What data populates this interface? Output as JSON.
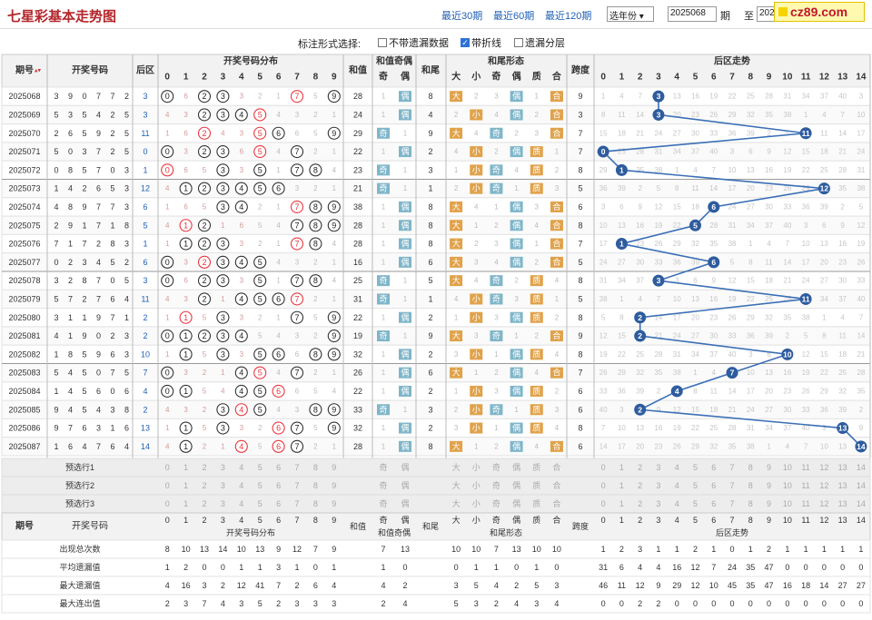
{
  "title": "七星彩基本走势图",
  "logo_text": "cz89.com",
  "ranges": [
    "最近30期",
    "最近60期",
    "最近120期"
  ],
  "year_select": "选年份",
  "from_issue": "2025068",
  "label_qi": "期",
  "label_zhi": "至",
  "to_issue": "2025087",
  "options_label": "标注形式选择:",
  "options": [
    {
      "label": "不带遗漏数据",
      "checked": false
    },
    {
      "label": "带折线",
      "checked": true
    },
    {
      "label": "遗漏分层",
      "checked": false
    }
  ],
  "headers": {
    "issue": "期号",
    "winning": "开奖号码",
    "back": "后区",
    "dist": "开奖号码分布",
    "sum": "和值",
    "sum_oe": "和值奇偶",
    "odd": "奇",
    "even": "偶",
    "tail": "和尾",
    "form": "和尾形态",
    "form_cols": [
      "大",
      "小",
      "奇",
      "偶",
      "质",
      "合"
    ],
    "span": "跨度",
    "trend": "后区走势"
  },
  "rows": [
    {
      "issue": "2025068",
      "nums": [
        3,
        9,
        0,
        7,
        7,
        2
      ],
      "back": 3,
      "sum": 28,
      "span": 9
    },
    {
      "issue": "2025069",
      "nums": [
        5,
        3,
        5,
        4,
        2,
        5
      ],
      "back": 3,
      "sum": 24,
      "span": 3
    },
    {
      "issue": "2025070",
      "nums": [
        2,
        6,
        5,
        9,
        2,
        5
      ],
      "back": 11,
      "sum": 29,
      "span": 7
    },
    {
      "issue": "2025071",
      "nums": [
        5,
        0,
        3,
        7,
        2,
        5
      ],
      "back": 0,
      "sum": 22,
      "span": 7
    },
    {
      "issue": "2025072",
      "nums": [
        0,
        8,
        5,
        7,
        0,
        3
      ],
      "back": 1,
      "sum": 23,
      "span": 8
    },
    {
      "issue": "2025073",
      "nums": [
        1,
        4,
        2,
        6,
        5,
        3
      ],
      "back": 12,
      "sum": 21,
      "span": 5
    },
    {
      "issue": "2025074",
      "nums": [
        4,
        8,
        9,
        7,
        7,
        3
      ],
      "back": 6,
      "sum": 38,
      "span": 6
    },
    {
      "issue": "2025075",
      "nums": [
        2,
        9,
        1,
        7,
        1,
        8
      ],
      "back": 5,
      "sum": 28,
      "span": 8
    },
    {
      "issue": "2025076",
      "nums": [
        7,
        1,
        7,
        2,
        8,
        3
      ],
      "back": 1,
      "sum": 28,
      "span": 7
    },
    {
      "issue": "2025077",
      "nums": [
        0,
        2,
        3,
        4,
        5,
        2
      ],
      "back": 6,
      "sum": 16,
      "span": 5
    },
    {
      "issue": "2025078",
      "nums": [
        3,
        2,
        8,
        7,
        0,
        5
      ],
      "back": 3,
      "sum": 25,
      "span": 8
    },
    {
      "issue": "2025079",
      "nums": [
        5,
        7,
        2,
        7,
        6,
        4
      ],
      "back": 11,
      "sum": 31,
      "span": 5
    },
    {
      "issue": "2025080",
      "nums": [
        3,
        1,
        1,
        9,
        7,
        1
      ],
      "back": 2,
      "sum": 22,
      "span": 8
    },
    {
      "issue": "2025081",
      "nums": [
        4,
        1,
        9,
        0,
        2,
        3
      ],
      "back": 2,
      "sum": 19,
      "span": 9
    },
    {
      "issue": "2025082",
      "nums": [
        1,
        8,
        5,
        9,
        6,
        3
      ],
      "back": 10,
      "sum": 32,
      "span": 8
    },
    {
      "issue": "2025083",
      "nums": [
        5,
        4,
        5,
        0,
        7,
        5
      ],
      "back": 7,
      "sum": 26,
      "span": 7
    },
    {
      "issue": "2025084",
      "nums": [
        1,
        4,
        5,
        6,
        0,
        6
      ],
      "back": 4,
      "sum": 22,
      "span": 6
    },
    {
      "issue": "2025085",
      "nums": [
        9,
        4,
        5,
        4,
        3,
        8
      ],
      "back": 2,
      "sum": 33,
      "span": 6
    },
    {
      "issue": "2025086",
      "nums": [
        9,
        7,
        6,
        3,
        1,
        6
      ],
      "back": 13,
      "sum": 32,
      "span": 8
    },
    {
      "issue": "2025087",
      "nums": [
        1,
        6,
        4,
        7,
        6,
        4
      ],
      "back": 14,
      "sum": 28,
      "span": 6
    }
  ],
  "predict_rows": [
    "预选行1",
    "预选行2",
    "预选行3"
  ],
  "stats_rows": [
    {
      "label": "出现总次数",
      "dist": [
        8,
        10,
        13,
        14,
        10,
        13,
        9,
        12,
        7,
        9
      ],
      "oe": [
        7,
        13
      ],
      "form": [
        10,
        10,
        7,
        13,
        10,
        10
      ],
      "trend": [
        1,
        2,
        3,
        1,
        1,
        2,
        1,
        0,
        1,
        2,
        1,
        1,
        1,
        1,
        1
      ]
    },
    {
      "label": "平均遗漏值",
      "dist": [
        1,
        2,
        0,
        0,
        1,
        1,
        3,
        1,
        0,
        1
      ],
      "oe": [
        1,
        0
      ],
      "form": [
        0,
        1,
        1,
        0,
        1,
        0
      ],
      "trend": [
        31,
        6,
        4,
        4,
        16,
        12,
        7,
        24,
        35,
        47,
        0,
        0,
        0,
        0,
        0
      ]
    },
    {
      "label": "最大遗漏值",
      "dist": [
        4,
        16,
        3,
        2,
        12,
        41,
        7,
        2,
        6,
        4
      ],
      "oe": [
        4,
        2
      ],
      "form": [
        3,
        5,
        4,
        2,
        5,
        3
      ],
      "trend": [
        46,
        11,
        12,
        9,
        29,
        12,
        10,
        45,
        35,
        47,
        16,
        18,
        14,
        27,
        27
      ]
    },
    {
      "label": "最大连出值",
      "dist": [
        2,
        3,
        7,
        4,
        3,
        5,
        2,
        3,
        3,
        3
      ],
      "oe": [
        2,
        4
      ],
      "form": [
        5,
        3,
        2,
        4,
        3,
        4
      ],
      "trend": [
        0,
        0,
        2,
        2,
        0,
        0,
        0,
        0,
        0,
        0,
        0,
        0,
        0,
        0,
        0
      ]
    }
  ],
  "colors": {
    "hit_red": "#e8373f",
    "hit_dark": "#333333",
    "line": "#3b6fb6",
    "ball": "#2e5c9e",
    "tag_blue": "#7fb6c9",
    "tag_orange": "#e0a24a",
    "hdr_bg": "#f2f2f2",
    "title_red": "#b3262b"
  }
}
